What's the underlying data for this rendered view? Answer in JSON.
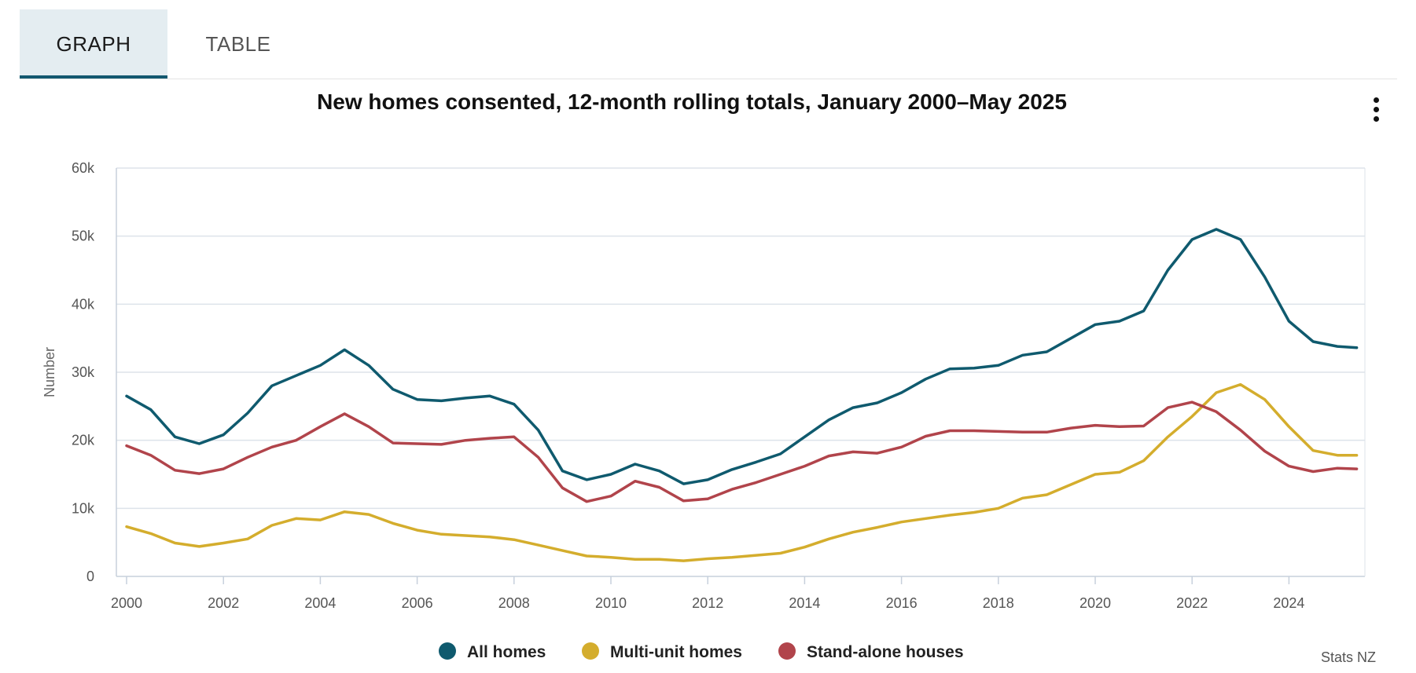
{
  "tabs": [
    {
      "label": "GRAPH",
      "active": true
    },
    {
      "label": "TABLE",
      "active": false
    }
  ],
  "menu_icon": "kebab-menu-icon",
  "credit": "Stats NZ",
  "colors": {
    "all": "#0f5a6e",
    "multi": "#d4ad2d",
    "stand": "#b1444b",
    "grid": "#dde3ea",
    "axis": "#c7d0dc"
  },
  "chart_data": {
    "type": "line",
    "title": "New homes consented, 12-month rolling totals, January 2000–May 2025",
    "xlabel": "",
    "ylabel": "Number",
    "xlim": [
      2000.0,
      2025.4
    ],
    "ylim": [
      0,
      60000
    ],
    "xticks": [
      "2000",
      "2002",
      "2004",
      "2006",
      "2008",
      "2010",
      "2012",
      "2014",
      "2016",
      "2018",
      "2020",
      "2022",
      "2024"
    ],
    "yticks": [
      "0",
      "10k",
      "20k",
      "30k",
      "40k",
      "50k",
      "60k"
    ],
    "grid": true,
    "legend_position": "bottom",
    "x": [
      2000.0,
      2000.5,
      2001.0,
      2001.5,
      2002.0,
      2002.5,
      2003.0,
      2003.5,
      2004.0,
      2004.5,
      2005.0,
      2005.5,
      2006.0,
      2006.5,
      2007.0,
      2007.5,
      2008.0,
      2008.5,
      2009.0,
      2009.5,
      2010.0,
      2010.5,
      2011.0,
      2011.5,
      2012.0,
      2012.5,
      2013.0,
      2013.5,
      2014.0,
      2014.5,
      2015.0,
      2015.5,
      2016.0,
      2016.5,
      2017.0,
      2017.5,
      2018.0,
      2018.5,
      2019.0,
      2019.5,
      2020.0,
      2020.5,
      2021.0,
      2021.5,
      2022.0,
      2022.5,
      2023.0,
      2023.5,
      2024.0,
      2024.5,
      2025.0,
      2025.4
    ],
    "series": [
      {
        "name": "All homes",
        "values": [
          26500,
          24500,
          20500,
          19500,
          20800,
          24000,
          28000,
          29500,
          31000,
          33300,
          31000,
          27500,
          26000,
          25800,
          26200,
          26500,
          25300,
          21500,
          15500,
          14200,
          15000,
          16500,
          15500,
          13600,
          14200,
          15700,
          16800,
          18000,
          20500,
          23000,
          24800,
          25500,
          27000,
          29000,
          30500,
          30600,
          31000,
          32500,
          33000,
          35000,
          37000,
          37500,
          39000,
          45000,
          49500,
          51000,
          49500,
          44000,
          37500,
          34500,
          33800,
          33600
        ]
      },
      {
        "name": "Multi-unit homes",
        "values": [
          7300,
          6300,
          4900,
          4400,
          4900,
          5500,
          7500,
          8500,
          8300,
          9500,
          9100,
          7800,
          6800,
          6200,
          6000,
          5800,
          5400,
          4600,
          3800,
          3000,
          2800,
          2500,
          2500,
          2300,
          2600,
          2800,
          3100,
          3400,
          4300,
          5500,
          6500,
          7200,
          8000,
          8500,
          9000,
          9400,
          10000,
          11500,
          12000,
          13500,
          15000,
          15300,
          17000,
          20500,
          23500,
          27000,
          28200,
          26000,
          22000,
          18500,
          17800,
          17800
        ]
      },
      {
        "name": "Stand-alone houses",
        "values": [
          19200,
          17800,
          15600,
          15100,
          15800,
          17500,
          19000,
          20000,
          22000,
          23900,
          22000,
          19600,
          19500,
          19400,
          20000,
          20300,
          20500,
          17500,
          13000,
          11000,
          11800,
          14000,
          13100,
          11100,
          11400,
          12800,
          13800,
          15000,
          16200,
          17700,
          18300,
          18100,
          19000,
          20600,
          21400,
          21400,
          21300,
          21200,
          21200,
          21800,
          22200,
          22000,
          22100,
          24800,
          25600,
          24200,
          21500,
          18400,
          16200,
          15400,
          15900,
          15800
        ]
      }
    ]
  }
}
